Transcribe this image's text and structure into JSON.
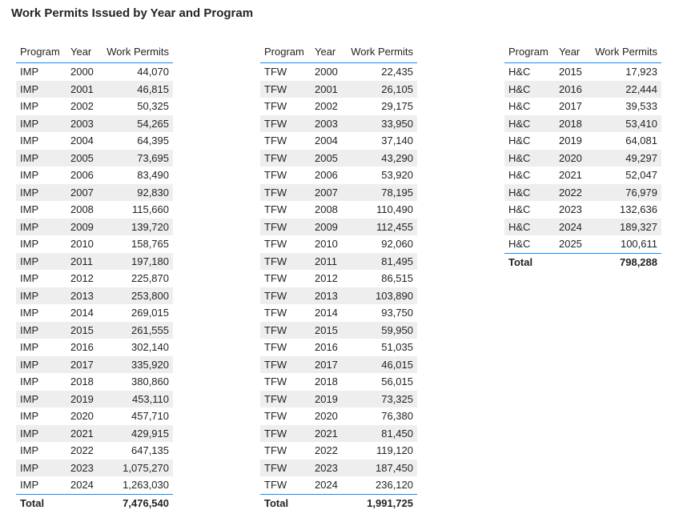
{
  "title": "Work Permits Issued by Year and Program",
  "columns": [
    "Program",
    "Year",
    "Work Permits"
  ],
  "total_label": "Total",
  "chart_data": [
    {
      "type": "table",
      "columns": [
        "Program",
        "Year",
        "Work Permits"
      ],
      "rows": [
        [
          "IMP",
          "2000",
          "44,070"
        ],
        [
          "IMP",
          "2001",
          "46,815"
        ],
        [
          "IMP",
          "2002",
          "50,325"
        ],
        [
          "IMP",
          "2003",
          "54,265"
        ],
        [
          "IMP",
          "2004",
          "64,395"
        ],
        [
          "IMP",
          "2005",
          "73,695"
        ],
        [
          "IMP",
          "2006",
          "83,490"
        ],
        [
          "IMP",
          "2007",
          "92,830"
        ],
        [
          "IMP",
          "2008",
          "115,660"
        ],
        [
          "IMP",
          "2009",
          "139,720"
        ],
        [
          "IMP",
          "2010",
          "158,765"
        ],
        [
          "IMP",
          "2011",
          "197,180"
        ],
        [
          "IMP",
          "2012",
          "225,870"
        ],
        [
          "IMP",
          "2013",
          "253,800"
        ],
        [
          "IMP",
          "2014",
          "269,015"
        ],
        [
          "IMP",
          "2015",
          "261,555"
        ],
        [
          "IMP",
          "2016",
          "302,140"
        ],
        [
          "IMP",
          "2017",
          "335,920"
        ],
        [
          "IMP",
          "2018",
          "380,860"
        ],
        [
          "IMP",
          "2019",
          "453,110"
        ],
        [
          "IMP",
          "2020",
          "457,710"
        ],
        [
          "IMP",
          "2021",
          "429,915"
        ],
        [
          "IMP",
          "2022",
          "647,135"
        ],
        [
          "IMP",
          "2023",
          "1,075,270"
        ],
        [
          "IMP",
          "2024",
          "1,263,030"
        ]
      ],
      "total": "7,476,540"
    },
    {
      "type": "table",
      "columns": [
        "Program",
        "Year",
        "Work Permits"
      ],
      "rows": [
        [
          "TFW",
          "2000",
          "22,435"
        ],
        [
          "TFW",
          "2001",
          "26,105"
        ],
        [
          "TFW",
          "2002",
          "29,175"
        ],
        [
          "TFW",
          "2003",
          "33,950"
        ],
        [
          "TFW",
          "2004",
          "37,140"
        ],
        [
          "TFW",
          "2005",
          "43,290"
        ],
        [
          "TFW",
          "2006",
          "53,920"
        ],
        [
          "TFW",
          "2007",
          "78,195"
        ],
        [
          "TFW",
          "2008",
          "110,490"
        ],
        [
          "TFW",
          "2009",
          "112,455"
        ],
        [
          "TFW",
          "2010",
          "92,060"
        ],
        [
          "TFW",
          "2011",
          "81,495"
        ],
        [
          "TFW",
          "2012",
          "86,515"
        ],
        [
          "TFW",
          "2013",
          "103,890"
        ],
        [
          "TFW",
          "2014",
          "93,750"
        ],
        [
          "TFW",
          "2015",
          "59,950"
        ],
        [
          "TFW",
          "2016",
          "51,035"
        ],
        [
          "TFW",
          "2017",
          "46,015"
        ],
        [
          "TFW",
          "2018",
          "56,015"
        ],
        [
          "TFW",
          "2019",
          "73,325"
        ],
        [
          "TFW",
          "2020",
          "76,380"
        ],
        [
          "TFW",
          "2021",
          "81,450"
        ],
        [
          "TFW",
          "2022",
          "119,120"
        ],
        [
          "TFW",
          "2023",
          "187,450"
        ],
        [
          "TFW",
          "2024",
          "236,120"
        ]
      ],
      "total": "1,991,725"
    },
    {
      "type": "table",
      "columns": [
        "Program",
        "Year",
        "Work Permits"
      ],
      "rows": [
        [
          "H&C",
          "2015",
          "17,923"
        ],
        [
          "H&C",
          "2016",
          "22,444"
        ],
        [
          "H&C",
          "2017",
          "39,533"
        ],
        [
          "H&C",
          "2018",
          "53,410"
        ],
        [
          "H&C",
          "2019",
          "64,081"
        ],
        [
          "H&C",
          "2020",
          "49,297"
        ],
        [
          "H&C",
          "2021",
          "52,047"
        ],
        [
          "H&C",
          "2022",
          "76,979"
        ],
        [
          "H&C",
          "2023",
          "132,636"
        ],
        [
          "H&C",
          "2024",
          "189,327"
        ],
        [
          "H&C",
          "2025",
          "100,611"
        ]
      ],
      "total": "798,288"
    }
  ]
}
